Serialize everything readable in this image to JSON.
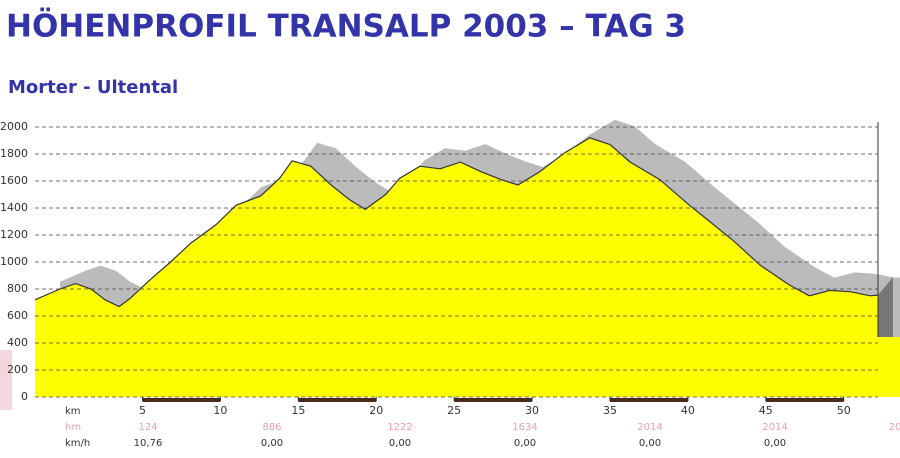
{
  "chart_data": {
    "type": "area",
    "title": "HÖHENPROFIL TRANSALP 2003 – TAG 3",
    "subtitle": "Morter - Ultental",
    "x": [
      -1.9,
      -0.3,
      0.7,
      1.7,
      2.6,
      3.5,
      4.2,
      5.5,
      6.8,
      8.1,
      9.7,
      11.0,
      12.6,
      13.8,
      14.6,
      15.8,
      17.1,
      18.3,
      19.3,
      20.6,
      21.5,
      22.8,
      24.1,
      25.4,
      26.7,
      28.0,
      29.1,
      30.5,
      32.1,
      33.7,
      35.0,
      36.3,
      38.2,
      40.1,
      41.4,
      43.0,
      44.6,
      46.5,
      47.8,
      49.1,
      50.4,
      51.7,
      52.2
    ],
    "values": [
      720,
      800,
      840,
      800,
      720,
      670,
      730,
      870,
      1000,
      1140,
      1275,
      1420,
      1490,
      1620,
      1750,
      1710,
      1570,
      1460,
      1390,
      1500,
      1620,
      1710,
      1690,
      1740,
      1670,
      1610,
      1570,
      1670,
      1810,
      1920,
      1870,
      1740,
      1610,
      1420,
      1300,
      1150,
      980,
      830,
      750,
      790,
      780,
      750,
      755
    ],
    "color": "#ffff00",
    "shadow_color": "#bbbbbb",
    "xlim": [
      -1.9,
      52.2
    ],
    "ylim": [
      0,
      2000
    ],
    "xticks": [
      5,
      10,
      15,
      20,
      25,
      30,
      35,
      40,
      45,
      50
    ],
    "yticks": [
      0,
      200,
      400,
      600,
      800,
      1000,
      1200,
      1400,
      1600,
      1800,
      2000
    ],
    "grid": true,
    "x_unit_label": "km",
    "stats_rows": [
      {
        "label": "hm",
        "cells": [
          "124",
          "886",
          "1222",
          "1634",
          "2014",
          "2014",
          "20"
        ]
      },
      {
        "label": "km/h",
        "cells": [
          "10,76",
          "0,00",
          "0,00",
          "0,00",
          "0,00",
          "0,00"
        ]
      }
    ]
  }
}
